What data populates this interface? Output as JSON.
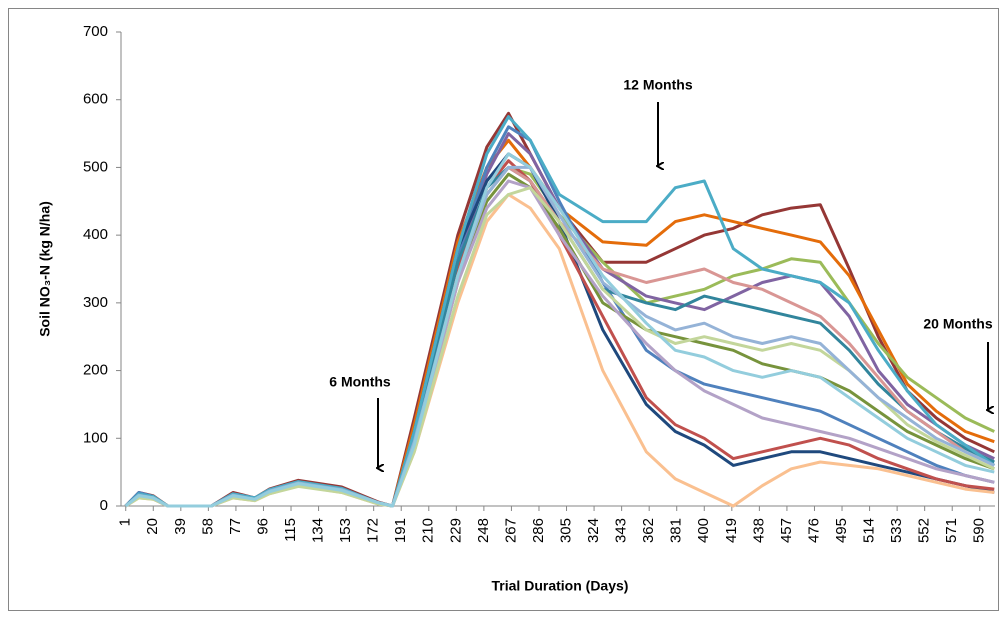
{
  "chart_data": {
    "type": "line",
    "y_label": "Soil NO₃-N (kg N/ha)",
    "x_label": "Trial Duration  (Days)",
    "annotations": [
      "6 Months",
      "12 Months",
      "20 Months"
    ],
    "xlim": [
      0.5,
      600.5
    ],
    "xticks": [
      1,
      20,
      39,
      58,
      77,
      96,
      115,
      134,
      153,
      172,
      191,
      210,
      229,
      248,
      267,
      286,
      305,
      324,
      343,
      362,
      381,
      400,
      419,
      438,
      457,
      476,
      495,
      514,
      533,
      552,
      571,
      590
    ],
    "ylim": [
      0,
      700
    ],
    "yticks": [
      0,
      100,
      200,
      300,
      400,
      500,
      600,
      700
    ],
    "x": [
      1,
      10,
      20,
      30,
      60,
      75,
      90,
      100,
      120,
      150,
      175,
      185,
      200,
      230,
      250,
      265,
      280,
      300,
      330,
      360,
      380,
      400,
      420,
      440,
      460,
      480,
      500,
      520,
      540,
      560,
      580,
      600
    ],
    "series": [
      {
        "color": "#953735",
        "values": [
          0,
          20,
          15,
          0,
          0,
          20,
          12,
          25,
          38,
          28,
          6,
          0,
          130,
          400,
          530,
          580,
          520,
          440,
          360,
          360,
          380,
          400,
          410,
          430,
          440,
          445,
          350,
          250,
          170,
          130,
          100,
          80
        ]
      },
      {
        "color": "#E46C0A",
        "values": [
          0,
          16,
          14,
          0,
          0,
          16,
          10,
          22,
          34,
          24,
          4,
          0,
          120,
          390,
          500,
          540,
          500,
          440,
          390,
          385,
          420,
          430,
          420,
          410,
          400,
          390,
          340,
          260,
          180,
          140,
          110,
          95
        ]
      },
      {
        "color": "#9BBB59",
        "values": [
          0,
          15,
          12,
          0,
          0,
          15,
          10,
          20,
          30,
          22,
          4,
          0,
          90,
          330,
          460,
          500,
          490,
          430,
          360,
          300,
          310,
          320,
          340,
          350,
          365,
          360,
          300,
          240,
          190,
          160,
          130,
          110
        ]
      },
      {
        "color": "#8064A2",
        "values": [
          0,
          14,
          12,
          0,
          0,
          14,
          10,
          20,
          32,
          22,
          4,
          0,
          100,
          360,
          490,
          550,
          520,
          440,
          350,
          310,
          300,
          290,
          310,
          330,
          340,
          330,
          280,
          200,
          150,
          120,
          90,
          70
        ]
      },
      {
        "color": "#4F81BD",
        "values": [
          0,
          20,
          14,
          0,
          0,
          18,
          12,
          22,
          34,
          25,
          5,
          0,
          105,
          370,
          500,
          560,
          540,
          450,
          330,
          230,
          200,
          180,
          170,
          160,
          150,
          140,
          120,
          100,
          80,
          60,
          45,
          35
        ]
      },
      {
        "color": "#1F497D",
        "values": [
          0,
          17,
          13,
          0,
          0,
          17,
          11,
          23,
          33,
          24,
          5,
          0,
          110,
          380,
          480,
          520,
          500,
          420,
          260,
          150,
          110,
          90,
          60,
          70,
          80,
          80,
          70,
          60,
          50,
          40,
          30,
          20
        ]
      },
      {
        "color": "#C0504D",
        "values": [
          0,
          15,
          12,
          0,
          0,
          15,
          10,
          20,
          30,
          22,
          4,
          0,
          100,
          350,
          470,
          510,
          480,
          400,
          280,
          160,
          120,
          100,
          70,
          80,
          90,
          100,
          90,
          70,
          55,
          40,
          30,
          25
        ]
      },
      {
        "color": "#77933C",
        "values": [
          0,
          14,
          11,
          0,
          0,
          14,
          9,
          20,
          31,
          22,
          4,
          0,
          90,
          340,
          450,
          490,
          470,
          410,
          300,
          260,
          250,
          240,
          230,
          210,
          200,
          190,
          170,
          140,
          110,
          90,
          70,
          55
        ]
      },
      {
        "color": "#31859C",
        "values": [
          0,
          15,
          12,
          0,
          0,
          15,
          10,
          21,
          32,
          23,
          4,
          0,
          100,
          360,
          470,
          500,
          480,
          420,
          320,
          300,
          290,
          310,
          300,
          290,
          280,
          270,
          230,
          180,
          140,
          110,
          85,
          65
        ]
      },
      {
        "color": "#D99694",
        "values": [
          0,
          14,
          11,
          0,
          0,
          14,
          9,
          20,
          31,
          22,
          4,
          0,
          90,
          340,
          460,
          500,
          480,
          420,
          350,
          330,
          340,
          350,
          330,
          320,
          300,
          280,
          240,
          190,
          140,
          110,
          80,
          60
        ]
      },
      {
        "color": "#B3A2C7",
        "values": [
          0,
          13,
          10,
          0,
          0,
          13,
          9,
          19,
          30,
          21,
          4,
          0,
          85,
          330,
          440,
          480,
          470,
          400,
          310,
          240,
          200,
          170,
          150,
          130,
          120,
          110,
          100,
          85,
          70,
          55,
          45,
          35
        ]
      },
      {
        "color": "#FAC090",
        "values": [
          0,
          12,
          10,
          0,
          0,
          12,
          8,
          18,
          30,
          20,
          3,
          0,
          80,
          300,
          420,
          460,
          440,
          380,
          200,
          80,
          40,
          20,
          0,
          30,
          55,
          65,
          60,
          55,
          45,
          35,
          25,
          20
        ]
      },
      {
        "color": "#4BACC6",
        "values": [
          0,
          18,
          14,
          0,
          0,
          18,
          12,
          24,
          36,
          26,
          5,
          0,
          110,
          380,
          520,
          575,
          540,
          460,
          420,
          420,
          470,
          480,
          380,
          350,
          340,
          330,
          300,
          230,
          170,
          120,
          90,
          60
        ]
      },
      {
        "color": "#C3D69B",
        "values": [
          0,
          12,
          10,
          0,
          0,
          12,
          8,
          18,
          29,
          20,
          3,
          0,
          80,
          310,
          430,
          460,
          470,
          420,
          320,
          260,
          240,
          250,
          240,
          230,
          240,
          230,
          200,
          160,
          120,
          95,
          75,
          55
        ]
      },
      {
        "color": "#95B3D7",
        "values": [
          0,
          16,
          12,
          0,
          0,
          16,
          10,
          22,
          34,
          24,
          5,
          0,
          95,
          340,
          460,
          500,
          500,
          430,
          330,
          280,
          260,
          270,
          250,
          240,
          250,
          240,
          200,
          160,
          130,
          100,
          80,
          60
        ]
      },
      {
        "color": "#93CDDD",
        "values": [
          0,
          15,
          12,
          0,
          0,
          15,
          10,
          21,
          33,
          23,
          5,
          0,
          90,
          340,
          470,
          520,
          500,
          440,
          340,
          270,
          230,
          220,
          200,
          190,
          200,
          190,
          160,
          130,
          100,
          80,
          60,
          50
        ]
      }
    ]
  }
}
